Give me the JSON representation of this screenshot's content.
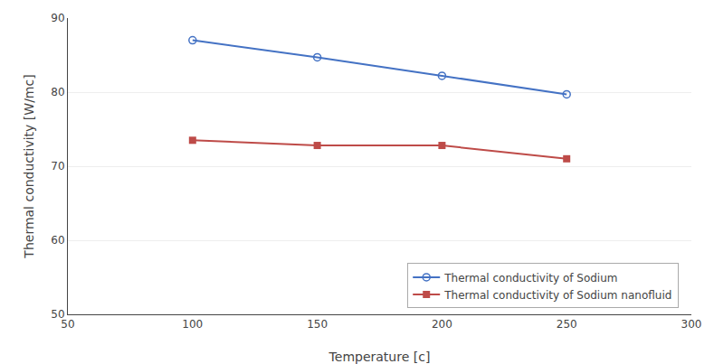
{
  "chart_data": {
    "type": "line",
    "xlabel": "Temperature [c]",
    "ylabel": "Thermal conductivity [W/mc]",
    "x": [
      100,
      150,
      200,
      250
    ],
    "series": [
      {
        "name": "Thermal conductivity of Sodium",
        "color": "#4472C4",
        "marker": "circle-open",
        "values": [
          87.0,
          84.7,
          82.2,
          79.7
        ]
      },
      {
        "name": "Thermal conductivity of Sodium nanofluid",
        "color": "#BE4B48",
        "marker": "square",
        "values": [
          73.5,
          72.8,
          72.8,
          71.0
        ]
      }
    ],
    "xlim": [
      50,
      300
    ],
    "ylim": [
      50,
      90
    ],
    "xticks": [
      50,
      100,
      150,
      200,
      250,
      300
    ],
    "yticks": [
      50,
      60,
      70,
      80,
      90
    ],
    "grid": "y",
    "legend": "lower right"
  }
}
